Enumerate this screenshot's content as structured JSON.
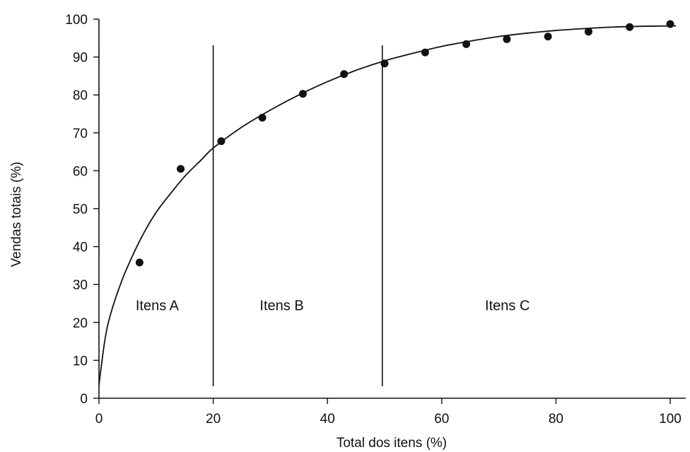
{
  "chart_data": {
    "type": "scatter",
    "title": "",
    "xlabel": "Total dos itens (%)",
    "ylabel": "Vendas totais (%)",
    "xlim": [
      0,
      100
    ],
    "ylim": [
      0,
      100
    ],
    "x_ticks": [
      0,
      20,
      40,
      60,
      80,
      100
    ],
    "y_ticks": [
      0,
      10,
      20,
      30,
      40,
      50,
      60,
      70,
      80,
      90,
      100
    ],
    "grid": false,
    "series": [
      {
        "x": [
          7.1,
          14.3,
          21.4,
          28.6,
          35.7,
          42.9,
          50.0,
          57.1,
          64.3,
          71.4,
          78.6,
          85.7,
          92.9,
          100.0
        ],
        "y": [
          35.8,
          60.5,
          67.8,
          74.0,
          80.3,
          85.5,
          88.3,
          91.2,
          93.4,
          94.7,
          95.4,
          96.7,
          97.9,
          98.7
        ]
      }
    ],
    "fit_curve": {
      "x": [
        0,
        1,
        2,
        4,
        6,
        8,
        10,
        12,
        15,
        18,
        20,
        25,
        30,
        35,
        40,
        45,
        50,
        55,
        60,
        65,
        70,
        75,
        80,
        85,
        90,
        95,
        100,
        101
      ],
      "y": [
        3.5,
        15,
        22,
        31,
        38,
        44,
        49,
        53,
        58.5,
        63,
        66,
        71.5,
        76,
        80,
        83.5,
        86.5,
        89,
        91,
        92.8,
        94.2,
        95.4,
        96.3,
        97,
        97.5,
        97.9,
        98.1,
        98.2,
        98.2
      ]
    },
    "dividers": [
      20,
      49.6
    ],
    "regions": [
      {
        "label": "Itens A",
        "x": 10.2
      },
      {
        "label": "Itens B",
        "x": 32
      },
      {
        "label": "Itens C",
        "x": 71.5
      }
    ],
    "region_label_y": 24.5,
    "colors": {
      "ink": "#111111",
      "background": "#ffffff"
    }
  }
}
